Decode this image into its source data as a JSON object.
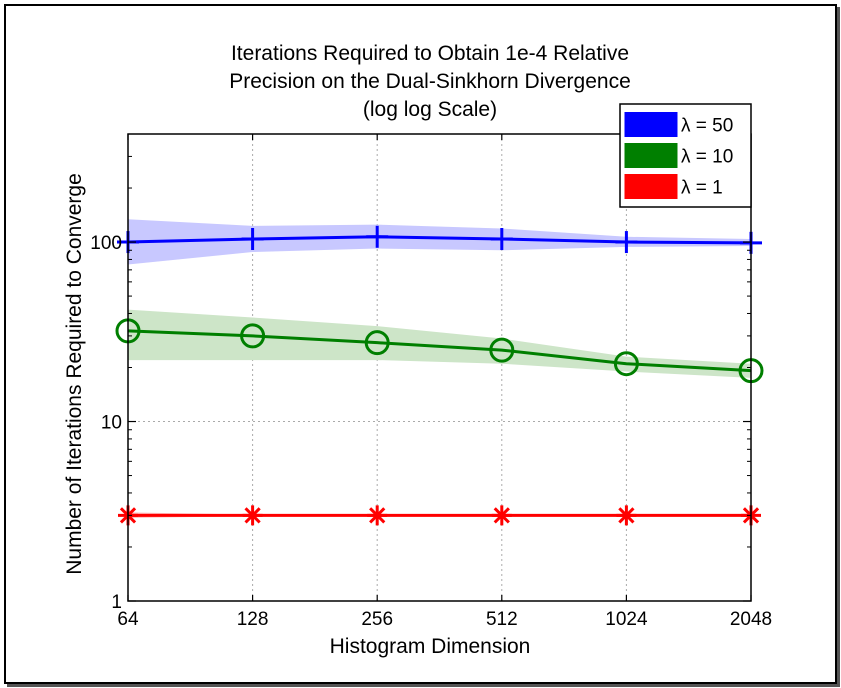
{
  "chart_data": {
    "type": "line",
    "title": [
      "Iterations Required to Obtain 1e-4 Relative",
      "Precision on the Dual-Sinkhorn Divergence",
      "(log log Scale)"
    ],
    "xlabel": "Histogram Dimension",
    "ylabel": "Number of Iterations Required to Converge",
    "x_scale": "log2",
    "y_scale": "log10",
    "x": [
      64,
      128,
      256,
      512,
      1024,
      2048
    ],
    "x_tick_labels": [
      "64",
      "128",
      "256",
      "512",
      "1024",
      "2048"
    ],
    "y_ticks": [
      1,
      10,
      100
    ],
    "y_tick_labels": [
      "1",
      "10",
      "100"
    ],
    "xlim": [
      64,
      2048
    ],
    "ylim": [
      1,
      400
    ],
    "grid": true,
    "legend_position": "top-right",
    "series": [
      {
        "name": "λ = 50",
        "color": "#0000ff",
        "marker": "plus",
        "values": [
          100,
          104,
          107,
          104,
          100,
          99
        ],
        "lower": [
          75,
          88,
          92,
          90,
          94,
          95
        ],
        "upper": [
          134,
          123,
          125,
          119,
          107,
          104
        ]
      },
      {
        "name": "λ = 10",
        "color": "#007f00",
        "marker": "circle",
        "band_color": "#cde5c8",
        "values": [
          32,
          30,
          27.5,
          25,
          21,
          19.2
        ],
        "lower": [
          22,
          22,
          22,
          21,
          19,
          17.5
        ],
        "upper": [
          42,
          38,
          34,
          29,
          23,
          21
        ]
      },
      {
        "name": "λ = 1",
        "color": "#ff0000",
        "marker": "asterisk",
        "band_color": "#ffbcbc",
        "values": [
          3,
          3,
          3,
          3,
          3,
          3
        ],
        "lower": [
          2.9,
          2.97,
          2.97,
          2.97,
          2.97,
          2.97
        ],
        "upper": [
          3.12,
          3.03,
          3.03,
          3.03,
          3.03,
          3.03
        ]
      }
    ]
  }
}
